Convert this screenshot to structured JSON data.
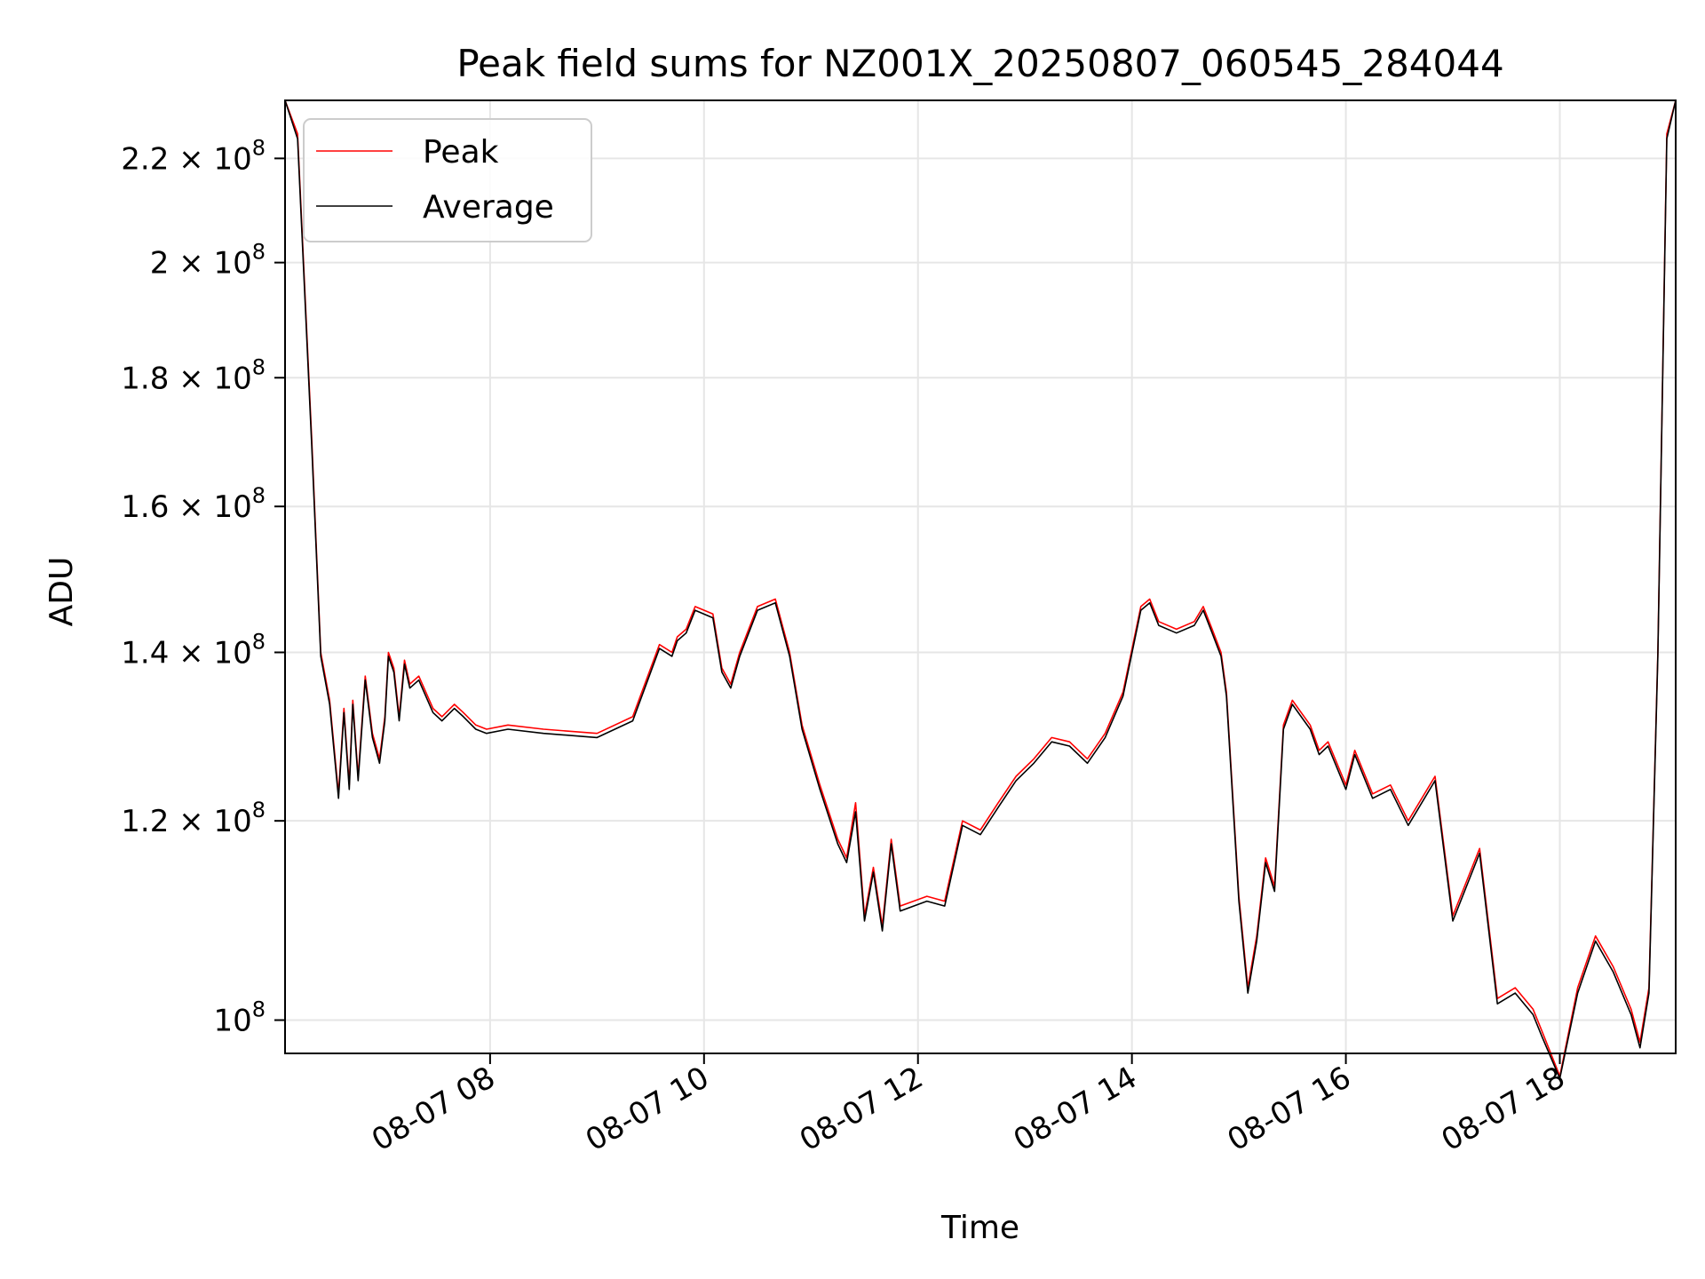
{
  "chart_data": {
    "type": "line",
    "title": "Peak field sums for NZ001X_20250807_060545_284044",
    "xlabel": "Time",
    "ylabel": "ADU",
    "yscale": "log",
    "grid": true,
    "legend_placement": "upper-left",
    "xlim": [
      "2025-08-07 06:05",
      "2025-08-07 19:05"
    ],
    "ylim": [
      97000000,
      232000000
    ],
    "x_ticks": [
      {
        "value": "2025-08-07 08:00",
        "label": "08-07 08"
      },
      {
        "value": "2025-08-07 10:00",
        "label": "08-07 10"
      },
      {
        "value": "2025-08-07 12:00",
        "label": "08-07 12"
      },
      {
        "value": "2025-08-07 14:00",
        "label": "08-07 14"
      },
      {
        "value": "2025-08-07 16:00",
        "label": "08-07 16"
      },
      {
        "value": "2025-08-07 18:00",
        "label": "08-07 18"
      }
    ],
    "y_ticks": [
      {
        "value": 100000000,
        "mant": "10",
        "exp": "8"
      },
      {
        "value": 120000000,
        "mant": "1.2 × 10",
        "exp": "8"
      },
      {
        "value": 140000000,
        "mant": "1.4 × 10",
        "exp": "8"
      },
      {
        "value": 160000000,
        "mant": "1.6 × 10",
        "exp": "8"
      },
      {
        "value": 180000000,
        "mant": "1.8 × 10",
        "exp": "8"
      },
      {
        "value": 200000000,
        "mant": "2 × 10",
        "exp": "8"
      },
      {
        "value": 220000000,
        "mant": "2.2 × 10",
        "exp": "8"
      }
    ],
    "colors": {
      "peak": "#ff0000",
      "average": "#000000",
      "grid": "#e6e6e6"
    },
    "series": [
      {
        "name": "Peak",
        "x": [
          "2025-08-07 06:05",
          "2025-08-07 06:12",
          "2025-08-07 06:20",
          "2025-08-07 06:25",
          "2025-08-07 06:30",
          "2025-08-07 06:35",
          "2025-08-07 06:38",
          "2025-08-07 06:41",
          "2025-08-07 06:43",
          "2025-08-07 06:46",
          "2025-08-07 06:50",
          "2025-08-07 06:54",
          "2025-08-07 06:58",
          "2025-08-07 07:01",
          "2025-08-07 07:03",
          "2025-08-07 07:06",
          "2025-08-07 07:09",
          "2025-08-07 07:12",
          "2025-08-07 07:15",
          "2025-08-07 07:20",
          "2025-08-07 07:28",
          "2025-08-07 07:33",
          "2025-08-07 07:40",
          "2025-08-07 07:45",
          "2025-08-07 07:52",
          "2025-08-07 07:58",
          "2025-08-07 08:10",
          "2025-08-07 08:30",
          "2025-08-07 09:00",
          "2025-08-07 09:20",
          "2025-08-07 09:35",
          "2025-08-07 09:42",
          "2025-08-07 09:45",
          "2025-08-07 09:50",
          "2025-08-07 09:55",
          "2025-08-07 10:05",
          "2025-08-07 10:10",
          "2025-08-07 10:15",
          "2025-08-07 10:20",
          "2025-08-07 10:30",
          "2025-08-07 10:40",
          "2025-08-07 10:48",
          "2025-08-07 10:55",
          "2025-08-07 11:05",
          "2025-08-07 11:15",
          "2025-08-07 11:20",
          "2025-08-07 11:25",
          "2025-08-07 11:30",
          "2025-08-07 11:35",
          "2025-08-07 11:40",
          "2025-08-07 11:45",
          "2025-08-07 11:50",
          "2025-08-07 12:05",
          "2025-08-07 12:15",
          "2025-08-07 12:25",
          "2025-08-07 12:35",
          "2025-08-07 12:45",
          "2025-08-07 12:55",
          "2025-08-07 13:05",
          "2025-08-07 13:15",
          "2025-08-07 13:25",
          "2025-08-07 13:35",
          "2025-08-07 13:45",
          "2025-08-07 13:55",
          "2025-08-07 14:05",
          "2025-08-07 14:10",
          "2025-08-07 14:15",
          "2025-08-07 14:25",
          "2025-08-07 14:35",
          "2025-08-07 14:40",
          "2025-08-07 14:45",
          "2025-08-07 14:50",
          "2025-08-07 14:53",
          "2025-08-07 14:55",
          "2025-08-07 15:00",
          "2025-08-07 15:05",
          "2025-08-07 15:10",
          "2025-08-07 15:15",
          "2025-08-07 15:20",
          "2025-08-07 15:25",
          "2025-08-07 15:30",
          "2025-08-07 15:40",
          "2025-08-07 15:45",
          "2025-08-07 15:50",
          "2025-08-07 16:00",
          "2025-08-07 16:05",
          "2025-08-07 16:15",
          "2025-08-07 16:25",
          "2025-08-07 16:35",
          "2025-08-07 16:50",
          "2025-08-07 17:00",
          "2025-08-07 17:15",
          "2025-08-07 17:25",
          "2025-08-07 17:35",
          "2025-08-07 17:45",
          "2025-08-07 17:50",
          "2025-08-07 18:00",
          "2025-08-07 18:10",
          "2025-08-07 18:20",
          "2025-08-07 18:30",
          "2025-08-07 18:40",
          "2025-08-07 18:45",
          "2025-08-07 18:50",
          "2025-08-07 18:55",
          "2025-08-07 19:00",
          "2025-08-07 19:05"
        ],
        "y": [
          232000000,
          225000000,
          170000000,
          140000000,
          134000000,
          123000000,
          133000000,
          124000000,
          134000000,
          125000000,
          137000000,
          130000000,
          127000000,
          132000000,
          140000000,
          138000000,
          132000000,
          139000000,
          136000000,
          137000000,
          133000000,
          132000000,
          133500000,
          132500000,
          131000000,
          130500000,
          131000000,
          130500000,
          130000000,
          132000000,
          141000000,
          140000000,
          142000000,
          143000000,
          146000000,
          145000000,
          138000000,
          136000000,
          140000000,
          146000000,
          147000000,
          140000000,
          131000000,
          124000000,
          118000000,
          116000000,
          122000000,
          110000000,
          115000000,
          109000000,
          118000000,
          111000000,
          112000000,
          111500000,
          120000000,
          119000000,
          122000000,
          125000000,
          127000000,
          129500000,
          129000000,
          127000000,
          130000000,
          135000000,
          146000000,
          147000000,
          144000000,
          143000000,
          144000000,
          146000000,
          143000000,
          140000000,
          135000000,
          128000000,
          112000000,
          103000000,
          108000000,
          116000000,
          113000000,
          131000000,
          134000000,
          131000000,
          128000000,
          129000000,
          124000000,
          128000000,
          123000000,
          124000000,
          120000000,
          125000000,
          110000000,
          117000000,
          102000000,
          103000000,
          101000000,
          99000000,
          95000000,
          103000000,
          108000000,
          105000000,
          101000000,
          98000000,
          103000000,
          140000000,
          225000000,
          232000000
        ]
      },
      {
        "name": "Average",
        "x": [
          "2025-08-07 06:05",
          "2025-08-07 06:12",
          "2025-08-07 06:20",
          "2025-08-07 06:25",
          "2025-08-07 06:30",
          "2025-08-07 06:35",
          "2025-08-07 06:38",
          "2025-08-07 06:41",
          "2025-08-07 06:43",
          "2025-08-07 06:46",
          "2025-08-07 06:50",
          "2025-08-07 06:54",
          "2025-08-07 06:58",
          "2025-08-07 07:01",
          "2025-08-07 07:03",
          "2025-08-07 07:06",
          "2025-08-07 07:09",
          "2025-08-07 07:12",
          "2025-08-07 07:15",
          "2025-08-07 07:20",
          "2025-08-07 07:28",
          "2025-08-07 07:33",
          "2025-08-07 07:40",
          "2025-08-07 07:45",
          "2025-08-07 07:52",
          "2025-08-07 07:58",
          "2025-08-07 08:10",
          "2025-08-07 08:30",
          "2025-08-07 09:00",
          "2025-08-07 09:20",
          "2025-08-07 09:35",
          "2025-08-07 09:42",
          "2025-08-07 09:45",
          "2025-08-07 09:50",
          "2025-08-07 09:55",
          "2025-08-07 10:05",
          "2025-08-07 10:10",
          "2025-08-07 10:15",
          "2025-08-07 10:20",
          "2025-08-07 10:30",
          "2025-08-07 10:40",
          "2025-08-07 10:48",
          "2025-08-07 10:55",
          "2025-08-07 11:05",
          "2025-08-07 11:15",
          "2025-08-07 11:20",
          "2025-08-07 11:25",
          "2025-08-07 11:30",
          "2025-08-07 11:35",
          "2025-08-07 11:40",
          "2025-08-07 11:45",
          "2025-08-07 11:50",
          "2025-08-07 12:05",
          "2025-08-07 12:15",
          "2025-08-07 12:25",
          "2025-08-07 12:35",
          "2025-08-07 12:45",
          "2025-08-07 12:55",
          "2025-08-07 13:05",
          "2025-08-07 13:15",
          "2025-08-07 13:25",
          "2025-08-07 13:35",
          "2025-08-07 13:45",
          "2025-08-07 13:55",
          "2025-08-07 14:05",
          "2025-08-07 14:10",
          "2025-08-07 14:15",
          "2025-08-07 14:25",
          "2025-08-07 14:35",
          "2025-08-07 14:40",
          "2025-08-07 14:45",
          "2025-08-07 14:50",
          "2025-08-07 14:53",
          "2025-08-07 14:55",
          "2025-08-07 15:00",
          "2025-08-07 15:05",
          "2025-08-07 15:10",
          "2025-08-07 15:15",
          "2025-08-07 15:20",
          "2025-08-07 15:25",
          "2025-08-07 15:30",
          "2025-08-07 15:40",
          "2025-08-07 15:45",
          "2025-08-07 15:50",
          "2025-08-07 16:00",
          "2025-08-07 16:05",
          "2025-08-07 16:15",
          "2025-08-07 16:25",
          "2025-08-07 16:35",
          "2025-08-07 16:50",
          "2025-08-07 17:00",
          "2025-08-07 17:15",
          "2025-08-07 17:25",
          "2025-08-07 17:35",
          "2025-08-07 17:45",
          "2025-08-07 17:50",
          "2025-08-07 18:00",
          "2025-08-07 18:10",
          "2025-08-07 18:20",
          "2025-08-07 18:30",
          "2025-08-07 18:40",
          "2025-08-07 18:45",
          "2025-08-07 18:50",
          "2025-08-07 18:55",
          "2025-08-07 19:00",
          "2025-08-07 19:05"
        ],
        "y": [
          232000000,
          224000000,
          169000000,
          139500000,
          133500000,
          122500000,
          132500000,
          123500000,
          133500000,
          124500000,
          136500000,
          129500000,
          126500000,
          131500000,
          139500000,
          137500000,
          131500000,
          138500000,
          135500000,
          136500000,
          132500000,
          131500000,
          133000000,
          132000000,
          130500000,
          130000000,
          130500000,
          130000000,
          129500000,
          131500000,
          140500000,
          139500000,
          141500000,
          142500000,
          145500000,
          144500000,
          137500000,
          135500000,
          139500000,
          145500000,
          146500000,
          139500000,
          130500000,
          123500000,
          117500000,
          115500000,
          121000000,
          109500000,
          114500000,
          108500000,
          117500000,
          110500000,
          111500000,
          111000000,
          119500000,
          118500000,
          121500000,
          124500000,
          126500000,
          129000000,
          128500000,
          126500000,
          129500000,
          134500000,
          145500000,
          146500000,
          143500000,
          142500000,
          143500000,
          145500000,
          142500000,
          139500000,
          134500000,
          127500000,
          111500000,
          102500000,
          107500000,
          115500000,
          112500000,
          130500000,
          133500000,
          130500000,
          127500000,
          128500000,
          123500000,
          127500000,
          122500000,
          123500000,
          119500000,
          124500000,
          109500000,
          116500000,
          101500000,
          102500000,
          100500000,
          98500000,
          94800000,
          102500000,
          107500000,
          104500000,
          100500000,
          97500000,
          102500000,
          139500000,
          224000000,
          232000000
        ]
      }
    ]
  }
}
